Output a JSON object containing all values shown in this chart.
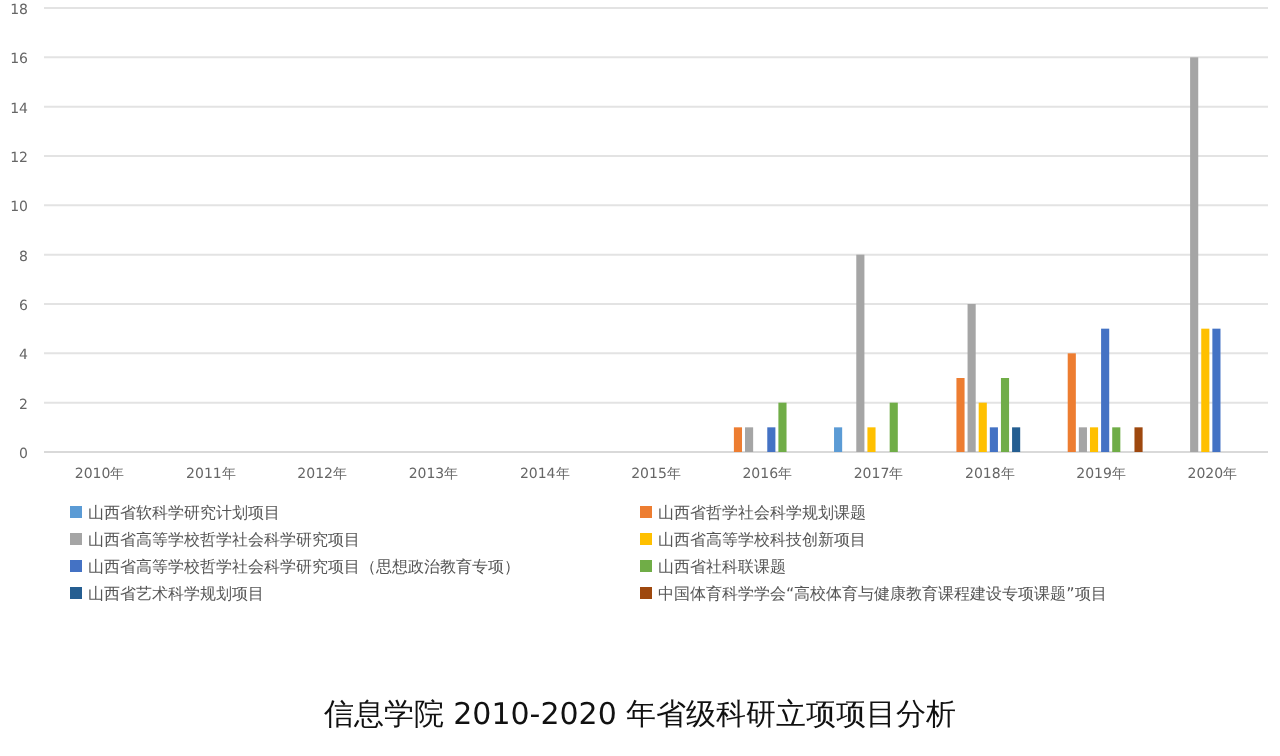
{
  "chart_data": {
    "type": "bar",
    "title": "信息学院 2010-2020 年省级科研立项项目分析",
    "categories": [
      "2010年",
      "2011年",
      "2012年",
      "2013年",
      "2014年",
      "2015年",
      "2016年",
      "2017年",
      "2018年",
      "2019年",
      "2020年"
    ],
    "series": [
      {
        "name": "山西省软科学研究计划项目",
        "color": "#5b9bd5",
        "values": [
          0,
          0,
          0,
          0,
          0,
          0,
          0,
          1,
          0,
          0,
          0
        ]
      },
      {
        "name": "山西省哲学社会科学规划课题",
        "color": "#ed7d31",
        "values": [
          0,
          0,
          0,
          0,
          0,
          0,
          1,
          0,
          3,
          4,
          0
        ]
      },
      {
        "name": "山西省高等学校哲学社会科学研究项目",
        "color": "#a5a5a5",
        "values": [
          0,
          0,
          0,
          0,
          0,
          0,
          1,
          8,
          6,
          1,
          16
        ]
      },
      {
        "name": "山西省高等学校科技创新项目",
        "color": "#ffc000",
        "values": [
          0,
          0,
          0,
          0,
          0,
          0,
          0,
          1,
          2,
          1,
          5
        ]
      },
      {
        "name": "山西省高等学校哲学社会科学研究项目（思想政治教育专项）",
        "color": "#4472c4",
        "values": [
          0,
          0,
          0,
          0,
          0,
          0,
          1,
          0,
          1,
          5,
          5
        ]
      },
      {
        "name": "山西省社科联课题",
        "color": "#70ad47",
        "values": [
          0,
          0,
          0,
          0,
          0,
          0,
          2,
          2,
          3,
          1,
          0
        ]
      },
      {
        "name": "山西省艺术科学规划项目",
        "color": "#255e91",
        "values": [
          0,
          0,
          0,
          0,
          0,
          0,
          0,
          0,
          1,
          0,
          0
        ]
      },
      {
        "name": "中国体育科学学会“高校体育与健康教育课程建设专项课题”项目",
        "color": "#9e480e",
        "values": [
          0,
          0,
          0,
          0,
          0,
          0,
          0,
          0,
          0,
          1,
          0
        ]
      }
    ],
    "ylim": [
      0,
      18
    ],
    "yticks": [
      0,
      2,
      4,
      6,
      8,
      10,
      12,
      14,
      16,
      18
    ],
    "grid": "y",
    "legend": "bottom"
  }
}
